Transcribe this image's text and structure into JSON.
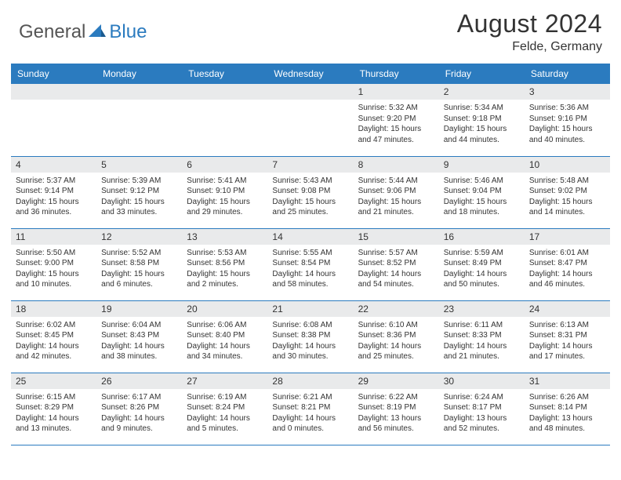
{
  "brand": {
    "part1": "General",
    "part2": "Blue",
    "text_color1": "#555555",
    "text_color2": "#2b7bbf"
  },
  "title": "August 2024",
  "location": "Felde, Germany",
  "colors": {
    "header_bg": "#2b7bbf",
    "header_text": "#ffffff",
    "daynum_bg": "#e9eaeb",
    "body_text": "#333333",
    "row_border": "#2b7bbf",
    "page_bg": "#ffffff"
  },
  "day_headers": [
    "Sunday",
    "Monday",
    "Tuesday",
    "Wednesday",
    "Thursday",
    "Friday",
    "Saturday"
  ],
  "weeks": [
    [
      {
        "n": "",
        "sr": "",
        "ss": "",
        "dl": ""
      },
      {
        "n": "",
        "sr": "",
        "ss": "",
        "dl": ""
      },
      {
        "n": "",
        "sr": "",
        "ss": "",
        "dl": ""
      },
      {
        "n": "",
        "sr": "",
        "ss": "",
        "dl": ""
      },
      {
        "n": "1",
        "sr": "Sunrise: 5:32 AM",
        "ss": "Sunset: 9:20 PM",
        "dl": "Daylight: 15 hours and 47 minutes."
      },
      {
        "n": "2",
        "sr": "Sunrise: 5:34 AM",
        "ss": "Sunset: 9:18 PM",
        "dl": "Daylight: 15 hours and 44 minutes."
      },
      {
        "n": "3",
        "sr": "Sunrise: 5:36 AM",
        "ss": "Sunset: 9:16 PM",
        "dl": "Daylight: 15 hours and 40 minutes."
      }
    ],
    [
      {
        "n": "4",
        "sr": "Sunrise: 5:37 AM",
        "ss": "Sunset: 9:14 PM",
        "dl": "Daylight: 15 hours and 36 minutes."
      },
      {
        "n": "5",
        "sr": "Sunrise: 5:39 AM",
        "ss": "Sunset: 9:12 PM",
        "dl": "Daylight: 15 hours and 33 minutes."
      },
      {
        "n": "6",
        "sr": "Sunrise: 5:41 AM",
        "ss": "Sunset: 9:10 PM",
        "dl": "Daylight: 15 hours and 29 minutes."
      },
      {
        "n": "7",
        "sr": "Sunrise: 5:43 AM",
        "ss": "Sunset: 9:08 PM",
        "dl": "Daylight: 15 hours and 25 minutes."
      },
      {
        "n": "8",
        "sr": "Sunrise: 5:44 AM",
        "ss": "Sunset: 9:06 PM",
        "dl": "Daylight: 15 hours and 21 minutes."
      },
      {
        "n": "9",
        "sr": "Sunrise: 5:46 AM",
        "ss": "Sunset: 9:04 PM",
        "dl": "Daylight: 15 hours and 18 minutes."
      },
      {
        "n": "10",
        "sr": "Sunrise: 5:48 AM",
        "ss": "Sunset: 9:02 PM",
        "dl": "Daylight: 15 hours and 14 minutes."
      }
    ],
    [
      {
        "n": "11",
        "sr": "Sunrise: 5:50 AM",
        "ss": "Sunset: 9:00 PM",
        "dl": "Daylight: 15 hours and 10 minutes."
      },
      {
        "n": "12",
        "sr": "Sunrise: 5:52 AM",
        "ss": "Sunset: 8:58 PM",
        "dl": "Daylight: 15 hours and 6 minutes."
      },
      {
        "n": "13",
        "sr": "Sunrise: 5:53 AM",
        "ss": "Sunset: 8:56 PM",
        "dl": "Daylight: 15 hours and 2 minutes."
      },
      {
        "n": "14",
        "sr": "Sunrise: 5:55 AM",
        "ss": "Sunset: 8:54 PM",
        "dl": "Daylight: 14 hours and 58 minutes."
      },
      {
        "n": "15",
        "sr": "Sunrise: 5:57 AM",
        "ss": "Sunset: 8:52 PM",
        "dl": "Daylight: 14 hours and 54 minutes."
      },
      {
        "n": "16",
        "sr": "Sunrise: 5:59 AM",
        "ss": "Sunset: 8:49 PM",
        "dl": "Daylight: 14 hours and 50 minutes."
      },
      {
        "n": "17",
        "sr": "Sunrise: 6:01 AM",
        "ss": "Sunset: 8:47 PM",
        "dl": "Daylight: 14 hours and 46 minutes."
      }
    ],
    [
      {
        "n": "18",
        "sr": "Sunrise: 6:02 AM",
        "ss": "Sunset: 8:45 PM",
        "dl": "Daylight: 14 hours and 42 minutes."
      },
      {
        "n": "19",
        "sr": "Sunrise: 6:04 AM",
        "ss": "Sunset: 8:43 PM",
        "dl": "Daylight: 14 hours and 38 minutes."
      },
      {
        "n": "20",
        "sr": "Sunrise: 6:06 AM",
        "ss": "Sunset: 8:40 PM",
        "dl": "Daylight: 14 hours and 34 minutes."
      },
      {
        "n": "21",
        "sr": "Sunrise: 6:08 AM",
        "ss": "Sunset: 8:38 PM",
        "dl": "Daylight: 14 hours and 30 minutes."
      },
      {
        "n": "22",
        "sr": "Sunrise: 6:10 AM",
        "ss": "Sunset: 8:36 PM",
        "dl": "Daylight: 14 hours and 25 minutes."
      },
      {
        "n": "23",
        "sr": "Sunrise: 6:11 AM",
        "ss": "Sunset: 8:33 PM",
        "dl": "Daylight: 14 hours and 21 minutes."
      },
      {
        "n": "24",
        "sr": "Sunrise: 6:13 AM",
        "ss": "Sunset: 8:31 PM",
        "dl": "Daylight: 14 hours and 17 minutes."
      }
    ],
    [
      {
        "n": "25",
        "sr": "Sunrise: 6:15 AM",
        "ss": "Sunset: 8:29 PM",
        "dl": "Daylight: 14 hours and 13 minutes."
      },
      {
        "n": "26",
        "sr": "Sunrise: 6:17 AM",
        "ss": "Sunset: 8:26 PM",
        "dl": "Daylight: 14 hours and 9 minutes."
      },
      {
        "n": "27",
        "sr": "Sunrise: 6:19 AM",
        "ss": "Sunset: 8:24 PM",
        "dl": "Daylight: 14 hours and 5 minutes."
      },
      {
        "n": "28",
        "sr": "Sunrise: 6:21 AM",
        "ss": "Sunset: 8:21 PM",
        "dl": "Daylight: 14 hours and 0 minutes."
      },
      {
        "n": "29",
        "sr": "Sunrise: 6:22 AM",
        "ss": "Sunset: 8:19 PM",
        "dl": "Daylight: 13 hours and 56 minutes."
      },
      {
        "n": "30",
        "sr": "Sunrise: 6:24 AM",
        "ss": "Sunset: 8:17 PM",
        "dl": "Daylight: 13 hours and 52 minutes."
      },
      {
        "n": "31",
        "sr": "Sunrise: 6:26 AM",
        "ss": "Sunset: 8:14 PM",
        "dl": "Daylight: 13 hours and 48 minutes."
      }
    ]
  ]
}
